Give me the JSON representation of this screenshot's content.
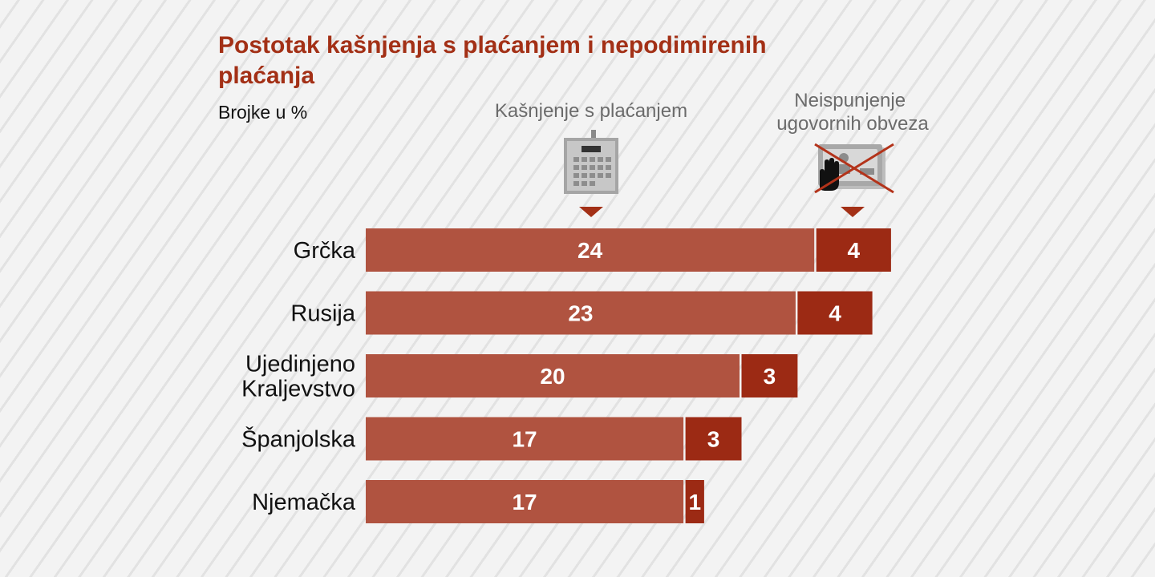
{
  "chart_data": {
    "type": "bar",
    "orientation": "horizontal",
    "stacked": true,
    "title": "Postotak kašnjenja s plaćanjem i nepodimirenih plaćanja",
    "title_lines": [
      "Postotak kašnjenja s plaćanjem i nepodimirenih",
      "plaćanja"
    ],
    "subtitle": "Brojke u %",
    "categories": [
      "Grčka",
      "Rusija",
      "Ujedinjeno Kraljevstvo",
      "Španjolska",
      "Njemačka"
    ],
    "category_lines": [
      [
        "Grčka"
      ],
      [
        "Rusija"
      ],
      [
        "Ujedinjeno",
        "Kraljevstvo"
      ],
      [
        "Španjolska"
      ],
      [
        "Njemačka"
      ]
    ],
    "series": [
      {
        "name": "Kašnjenje s plaćanjem",
        "name_lines": [
          "Kašnjenje s plaćanjem"
        ],
        "icon": "calendar-icon",
        "color": "#b05340",
        "values": [
          24,
          23,
          20,
          17,
          17
        ]
      },
      {
        "name": "Neispunjenje ugovornih obveza",
        "name_lines": [
          "Neispunjenje",
          "ugovornih obveza"
        ],
        "icon": "crossed-payment-icon",
        "color": "#9c2a14",
        "values": [
          4,
          4,
          3,
          3,
          1
        ]
      }
    ],
    "xlim": [
      0,
      28
    ],
    "legend_position": "top",
    "grid": false,
    "colors": {
      "title": "#a33016",
      "legend_text": "#6b6b6b",
      "marker": "#a33016"
    }
  }
}
